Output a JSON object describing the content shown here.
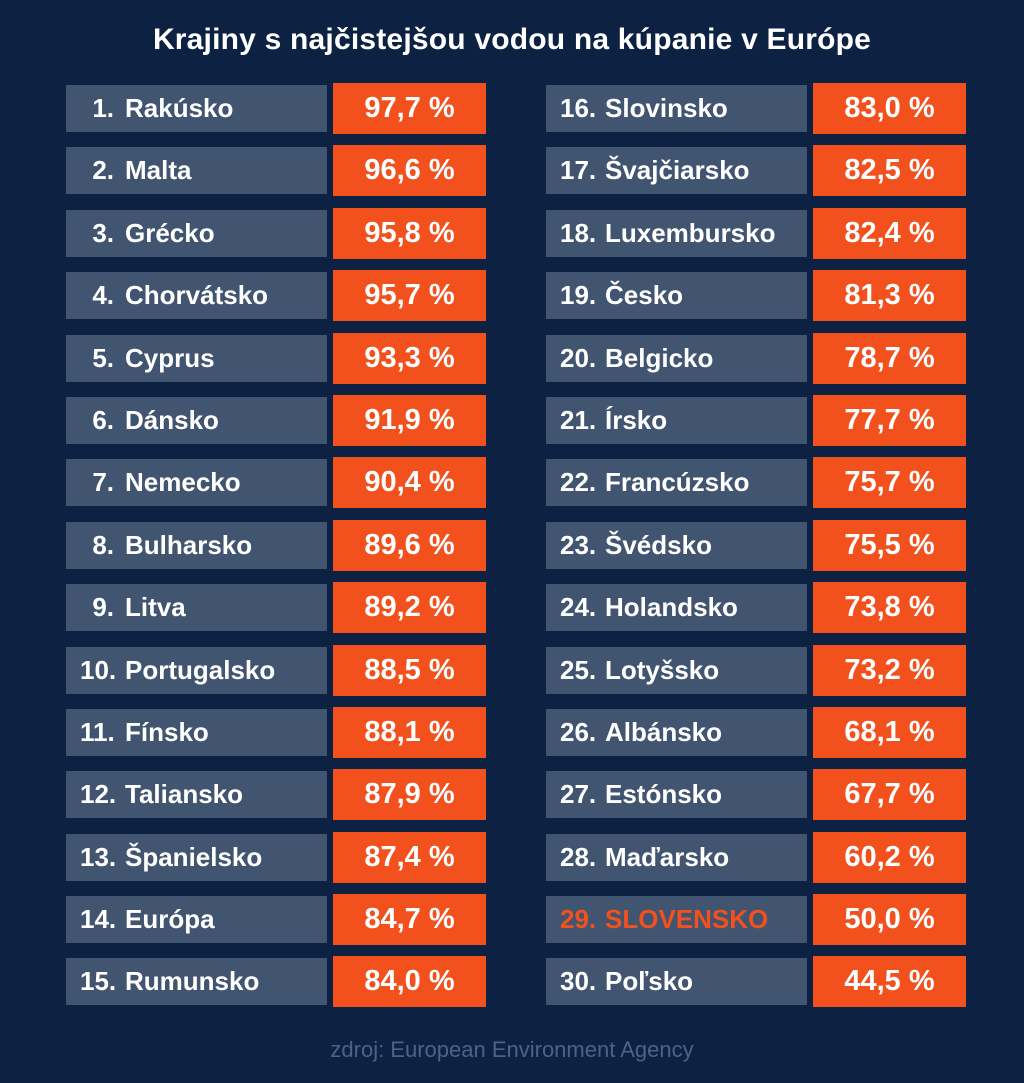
{
  "title": "Krajiny s najčistejšou vodou na kúpanie v Európe",
  "footer": {
    "source": "zdroj: European Environment Agency"
  },
  "colors": {
    "background": "#0D2143",
    "row_bar": "#415470",
    "accent_orange": "#F2511D",
    "text_primary": "#FFFFFF",
    "footer_text": "#4E6287"
  },
  "chart_data": {
    "type": "table",
    "title": "Krajiny s najčistejšou vodou na kúpanie v Európe",
    "unit": "%",
    "source": "zdroj: European Environment Agency",
    "layout": "two columns; ranks 1-15 left, ranks 16-30 right; highlighted row rank 29",
    "highlighted_rank": 29,
    "entries": [
      {
        "rank": 1,
        "rank_display": "1.",
        "country": "Rakúsko",
        "value": 97.7,
        "value_display": "97,7 %",
        "highlight": false
      },
      {
        "rank": 2,
        "rank_display": "2.",
        "country": "Malta",
        "value": 96.6,
        "value_display": "96,6 %",
        "highlight": false
      },
      {
        "rank": 3,
        "rank_display": "3.",
        "country": "Grécko",
        "value": 95.8,
        "value_display": "95,8 %",
        "highlight": false
      },
      {
        "rank": 4,
        "rank_display": "4.",
        "country": "Chorvátsko",
        "value": 95.7,
        "value_display": "95,7 %",
        "highlight": false
      },
      {
        "rank": 5,
        "rank_display": "5.",
        "country": "Cyprus",
        "value": 93.3,
        "value_display": "93,3 %",
        "highlight": false
      },
      {
        "rank": 6,
        "rank_display": "6.",
        "country": "Dánsko",
        "value": 91.9,
        "value_display": "91,9 %",
        "highlight": false
      },
      {
        "rank": 7,
        "rank_display": "7.",
        "country": "Nemecko",
        "value": 90.4,
        "value_display": "90,4 %",
        "highlight": false
      },
      {
        "rank": 8,
        "rank_display": "8.",
        "country": "Bulharsko",
        "value": 89.6,
        "value_display": "89,6 %",
        "highlight": false
      },
      {
        "rank": 9,
        "rank_display": "9.",
        "country": "Litva",
        "value": 89.2,
        "value_display": "89,2 %",
        "highlight": false
      },
      {
        "rank": 10,
        "rank_display": "10.",
        "country": "Portugalsko",
        "value": 88.5,
        "value_display": "88,5 %",
        "highlight": false
      },
      {
        "rank": 11,
        "rank_display": "11.",
        "country": "Fínsko",
        "value": 88.1,
        "value_display": "88,1 %",
        "highlight": false
      },
      {
        "rank": 12,
        "rank_display": "12.",
        "country": "Taliansko",
        "value": 87.9,
        "value_display": "87,9 %",
        "highlight": false
      },
      {
        "rank": 13,
        "rank_display": "13.",
        "country": "Španielsko",
        "value": 87.4,
        "value_display": "87,4 %",
        "highlight": false
      },
      {
        "rank": 14,
        "rank_display": "14.",
        "country": "Európa",
        "value": 84.7,
        "value_display": "84,7 %",
        "highlight": false
      },
      {
        "rank": 15,
        "rank_display": "15.",
        "country": "Rumunsko",
        "value": 84.0,
        "value_display": "84,0 %",
        "highlight": false
      },
      {
        "rank": 16,
        "rank_display": "16.",
        "country": "Slovinsko",
        "value": 83.0,
        "value_display": "83,0 %",
        "highlight": false
      },
      {
        "rank": 17,
        "rank_display": "17.",
        "country": "Švajčiarsko",
        "value": 82.5,
        "value_display": "82,5 %",
        "highlight": false
      },
      {
        "rank": 18,
        "rank_display": "18.",
        "country": "Luxembursko",
        "value": 82.4,
        "value_display": "82,4 %",
        "highlight": false
      },
      {
        "rank": 19,
        "rank_display": "19.",
        "country": "Česko",
        "value": 81.3,
        "value_display": "81,3 %",
        "highlight": false
      },
      {
        "rank": 20,
        "rank_display": "20.",
        "country": "Belgicko",
        "value": 78.7,
        "value_display": "78,7 %",
        "highlight": false
      },
      {
        "rank": 21,
        "rank_display": "21.",
        "country": "Írsko",
        "value": 77.7,
        "value_display": "77,7 %",
        "highlight": false
      },
      {
        "rank": 22,
        "rank_display": "22.",
        "country": "Francúzsko",
        "value": 75.7,
        "value_display": "75,7 %",
        "highlight": false
      },
      {
        "rank": 23,
        "rank_display": "23.",
        "country": "Švédsko",
        "value": 75.5,
        "value_display": "75,5 %",
        "highlight": false
      },
      {
        "rank": 24,
        "rank_display": "24.",
        "country": "Holandsko",
        "value": 73.8,
        "value_display": "73,8 %",
        "highlight": false
      },
      {
        "rank": 25,
        "rank_display": "25.",
        "country": "Lotyšsko",
        "value": 73.2,
        "value_display": "73,2 %",
        "highlight": false
      },
      {
        "rank": 26,
        "rank_display": "26.",
        "country": "Albánsko",
        "value": 68.1,
        "value_display": "68,1 %",
        "highlight": false
      },
      {
        "rank": 27,
        "rank_display": "27.",
        "country": "Estónsko",
        "value": 67.7,
        "value_display": "67,7 %",
        "highlight": false
      },
      {
        "rank": 28,
        "rank_display": "28.",
        "country": "Maďarsko",
        "value": 60.2,
        "value_display": "60,2 %",
        "highlight": false
      },
      {
        "rank": 29,
        "rank_display": "29.",
        "country": "SLOVENSKO",
        "value": 50.0,
        "value_display": "50,0 %",
        "highlight": true
      },
      {
        "rank": 30,
        "rank_display": "30.",
        "country": "Poľsko",
        "value": 44.5,
        "value_display": "44,5 %",
        "highlight": false
      }
    ]
  }
}
